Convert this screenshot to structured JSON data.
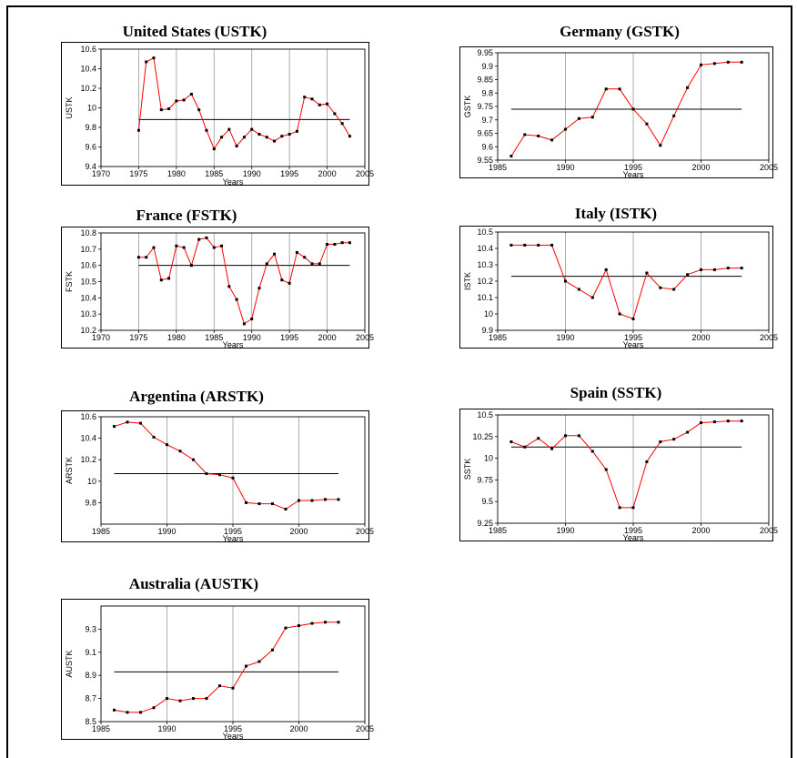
{
  "chart_data": [
    {
      "type": "line",
      "title": "United States (USTK)",
      "xlabel": "Years",
      "ylabel": "USTK",
      "xlim": [
        1970,
        2005
      ],
      "ylim": [
        9.4,
        10.6
      ],
      "xticks": [
        1970,
        1975,
        1980,
        1985,
        1990,
        1995,
        2000,
        2005
      ],
      "yticks": [
        "9.4",
        "9.6",
        "9.8",
        "10",
        "10.2",
        "10.4",
        "10.6"
      ],
      "x": [
        1975,
        1976,
        1977,
        1978,
        1979,
        1980,
        1981,
        1982,
        1983,
        1984,
        1985,
        1986,
        1987,
        1988,
        1989,
        1990,
        1991,
        1992,
        1993,
        1994,
        1995,
        1996,
        1997,
        1998,
        1999,
        2000,
        2001,
        2002,
        2003
      ],
      "values": [
        9.77,
        10.47,
        10.51,
        9.98,
        9.99,
        10.07,
        10.08,
        10.14,
        9.98,
        9.77,
        9.58,
        9.7,
        9.78,
        9.61,
        9.7,
        9.78,
        9.73,
        9.7,
        9.66,
        9.71,
        9.73,
        9.76,
        10.11,
        10.09,
        10.03,
        10.04,
        9.94,
        9.84,
        9.71
      ],
      "mean": 9.88,
      "grid": "vertical"
    },
    {
      "type": "line",
      "title": "Germany (GSTK)",
      "xlabel": "Years",
      "ylabel": "GSTK",
      "xlim": [
        1985,
        2005
      ],
      "ylim": [
        9.55,
        9.95
      ],
      "xticks": [
        1985,
        1990,
        1995,
        2000,
        2005
      ],
      "yticks": [
        "9.55",
        "9.6",
        "9.65",
        "9.7",
        "9.75",
        "9.8",
        "9.85",
        "9.9",
        "9.95"
      ],
      "x": [
        1986,
        1987,
        1988,
        1989,
        1990,
        1991,
        1992,
        1993,
        1994,
        1995,
        1996,
        1997,
        1998,
        1999,
        2000,
        2001,
        2002,
        2003
      ],
      "values": [
        9.565,
        9.645,
        9.64,
        9.625,
        9.665,
        9.705,
        9.71,
        9.815,
        9.815,
        9.74,
        9.685,
        9.605,
        9.715,
        9.82,
        9.905,
        9.91,
        9.915,
        9.915
      ],
      "mean": 9.74,
      "grid": "vertical"
    },
    {
      "type": "line",
      "title": "France (FSTK)",
      "xlabel": "Years",
      "ylabel": "FSTK",
      "xlim": [
        1970,
        2005
      ],
      "ylim": [
        10.2,
        10.8
      ],
      "xticks": [
        1970,
        1975,
        1980,
        1985,
        1990,
        1995,
        2000,
        2005
      ],
      "yticks": [
        "10.2",
        "10.3",
        "10.4",
        "10.5",
        "10.6",
        "10.7",
        "10.8"
      ],
      "x": [
        1975,
        1976,
        1977,
        1978,
        1979,
        1980,
        1981,
        1982,
        1983,
        1984,
        1985,
        1986,
        1987,
        1988,
        1989,
        1990,
        1991,
        1992,
        1993,
        1994,
        1995,
        1996,
        1997,
        1998,
        1999,
        2000,
        2001,
        2002,
        2003
      ],
      "values": [
        10.65,
        10.65,
        10.71,
        10.51,
        10.52,
        10.72,
        10.71,
        10.6,
        10.76,
        10.77,
        10.71,
        10.72,
        10.47,
        10.39,
        10.24,
        10.27,
        10.46,
        10.61,
        10.67,
        10.51,
        10.49,
        10.68,
        10.65,
        10.61,
        10.61,
        10.73,
        10.73,
        10.74,
        10.74
      ],
      "mean": 10.6,
      "grid": "vertical"
    },
    {
      "type": "line",
      "title": "Italy (ISTK)",
      "xlabel": "Years",
      "ylabel": "ISTK",
      "xlim": [
        1985,
        2005
      ],
      "ylim": [
        9.9,
        10.5
      ],
      "xticks": [
        1985,
        1990,
        1995,
        2000,
        2005
      ],
      "yticks": [
        "9.9",
        "10",
        "10.1",
        "10.2",
        "10.3",
        "10.4",
        "10.5"
      ],
      "x": [
        1986,
        1987,
        1988,
        1989,
        1990,
        1991,
        1992,
        1993,
        1994,
        1995,
        1996,
        1997,
        1998,
        1999,
        2000,
        2001,
        2002,
        2003
      ],
      "values": [
        10.42,
        10.42,
        10.42,
        10.42,
        10.2,
        10.15,
        10.1,
        10.27,
        10.0,
        9.97,
        10.25,
        10.16,
        10.15,
        10.24,
        10.27,
        10.27,
        10.28,
        10.28
      ],
      "mean": 10.23,
      "grid": "vertical"
    },
    {
      "type": "line",
      "title": "Argentina (ARSTK)",
      "xlabel": "Years",
      "ylabel": "ARSTK",
      "xlim": [
        1985,
        2005
      ],
      "ylim": [
        9.6,
        10.6
      ],
      "xticks": [
        1985,
        1990,
        1995,
        2000,
        2005
      ],
      "yticks": [
        "9.8",
        "10",
        "10.2",
        "10.4",
        "10.6"
      ],
      "x": [
        1986,
        1987,
        1988,
        1989,
        1990,
        1991,
        1992,
        1993,
        1994,
        1995,
        1996,
        1997,
        1998,
        1999,
        2000,
        2001,
        2002,
        2003
      ],
      "values": [
        10.51,
        10.55,
        10.54,
        10.41,
        10.34,
        10.28,
        10.2,
        10.07,
        10.06,
        10.03,
        9.8,
        9.79,
        9.79,
        9.74,
        9.82,
        9.82,
        9.83,
        9.83
      ],
      "mean": 10.07,
      "grid": "vertical"
    },
    {
      "type": "line",
      "title": "Spain (SSTK)",
      "xlabel": "Years",
      "ylabel": "SSTK",
      "xlim": [
        1985,
        2005
      ],
      "ylim": [
        9.25,
        10.5
      ],
      "xticks": [
        1985,
        1990,
        1995,
        2000,
        2005
      ],
      "yticks": [
        "9.25",
        "9.5",
        "9.75",
        "10",
        "10.25",
        "10.5"
      ],
      "x": [
        1986,
        1987,
        1988,
        1989,
        1990,
        1991,
        1992,
        1993,
        1994,
        1995,
        1996,
        1997,
        1998,
        1999,
        2000,
        2001,
        2002,
        2003
      ],
      "values": [
        10.19,
        10.13,
        10.23,
        10.11,
        10.26,
        10.26,
        10.08,
        9.87,
        9.43,
        9.43,
        9.96,
        10.19,
        10.22,
        10.3,
        10.41,
        10.42,
        10.43,
        10.43
      ],
      "mean": 10.13,
      "grid": "vertical"
    },
    {
      "type": "line",
      "title": "Australia (AUSTK)",
      "xlabel": "Years",
      "ylabel": "AUSTK",
      "xlim": [
        1985,
        2005
      ],
      "ylim": [
        8.5,
        9.5
      ],
      "xticks": [
        1985,
        1990,
        1995,
        2000,
        2005
      ],
      "yticks": [
        "8.5",
        "8.7",
        "8.9",
        "9.1",
        "9.3"
      ],
      "x": [
        1986,
        1987,
        1988,
        1989,
        1990,
        1991,
        1992,
        1993,
        1994,
        1995,
        1996,
        1997,
        1998,
        1999,
        2000,
        2001,
        2002,
        2003
      ],
      "values": [
        8.6,
        8.58,
        8.58,
        8.62,
        8.7,
        8.68,
        8.7,
        8.7,
        8.81,
        8.79,
        8.98,
        9.02,
        9.12,
        9.31,
        9.33,
        9.35,
        9.36,
        9.36
      ],
      "mean": 8.93,
      "grid": "vertical"
    }
  ],
  "colors": {
    "series_line": "#ff0000",
    "marker": "#000000",
    "mean_line": "#000000",
    "grid": "#999999"
  }
}
